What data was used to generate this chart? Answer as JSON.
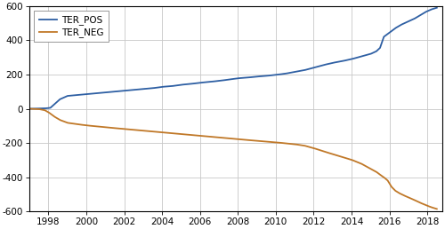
{
  "xlim": [
    1997.0,
    2018.8
  ],
  "ylim": [
    -600,
    600
  ],
  "yticks": [
    -600,
    -400,
    -200,
    0,
    200,
    400,
    600
  ],
  "xticks": [
    1998,
    2000,
    2002,
    2004,
    2006,
    2008,
    2010,
    2012,
    2014,
    2016,
    2018
  ],
  "pos_color": "#2e5fa3",
  "neg_color": "#c07828",
  "legend_pos_label": "TER_POS",
  "legend_neg_label": "TER_NEG",
  "background_color": "#ffffff",
  "grid_color": "#c8c8c8",
  "pos_keypoints": [
    [
      1997.0,
      0
    ],
    [
      1997.8,
      2
    ],
    [
      1998.1,
      5
    ],
    [
      1998.6,
      55
    ],
    [
      1999.0,
      75
    ],
    [
      1999.5,
      80
    ],
    [
      2000.0,
      85
    ],
    [
      2001.0,
      95
    ],
    [
      2002.0,
      105
    ],
    [
      2003.0,
      115
    ],
    [
      2003.5,
      120
    ],
    [
      2004.0,
      128
    ],
    [
      2004.5,
      132
    ],
    [
      2005.0,
      140
    ],
    [
      2005.5,
      145
    ],
    [
      2006.0,
      152
    ],
    [
      2006.5,
      157
    ],
    [
      2007.0,
      163
    ],
    [
      2007.5,
      170
    ],
    [
      2008.0,
      178
    ],
    [
      2008.5,
      182
    ],
    [
      2009.0,
      188
    ],
    [
      2009.5,
      192
    ],
    [
      2010.0,
      198
    ],
    [
      2010.5,
      205
    ],
    [
      2011.0,
      215
    ],
    [
      2011.5,
      225
    ],
    [
      2012.0,
      240
    ],
    [
      2012.5,
      255
    ],
    [
      2013.0,
      268
    ],
    [
      2013.5,
      278
    ],
    [
      2014.0,
      290
    ],
    [
      2014.5,
      305
    ],
    [
      2015.0,
      320
    ],
    [
      2015.3,
      335
    ],
    [
      2015.5,
      355
    ],
    [
      2015.7,
      420
    ],
    [
      2016.0,
      445
    ],
    [
      2016.3,
      470
    ],
    [
      2016.6,
      490
    ],
    [
      2017.0,
      510
    ],
    [
      2017.3,
      525
    ],
    [
      2017.6,
      545
    ],
    [
      2017.9,
      565
    ],
    [
      2018.2,
      580
    ],
    [
      2018.5,
      590
    ]
  ],
  "neg_keypoints": [
    [
      1997.0,
      0
    ],
    [
      1997.5,
      -2
    ],
    [
      1997.8,
      -8
    ],
    [
      1998.0,
      -20
    ],
    [
      1998.3,
      -45
    ],
    [
      1998.6,
      -65
    ],
    [
      1999.0,
      -82
    ],
    [
      1999.5,
      -90
    ],
    [
      2000.0,
      -97
    ],
    [
      2001.0,
      -108
    ],
    [
      2002.0,
      -118
    ],
    [
      2003.0,
      -128
    ],
    [
      2004.0,
      -138
    ],
    [
      2005.0,
      -148
    ],
    [
      2006.0,
      -158
    ],
    [
      2007.0,
      -168
    ],
    [
      2008.0,
      -178
    ],
    [
      2009.0,
      -187
    ],
    [
      2010.0,
      -196
    ],
    [
      2011.0,
      -207
    ],
    [
      2011.5,
      -215
    ],
    [
      2012.0,
      -230
    ],
    [
      2012.5,
      -248
    ],
    [
      2013.0,
      -265
    ],
    [
      2013.5,
      -282
    ],
    [
      2014.0,
      -298
    ],
    [
      2014.5,
      -320
    ],
    [
      2015.0,
      -350
    ],
    [
      2015.3,
      -368
    ],
    [
      2015.5,
      -385
    ],
    [
      2015.7,
      -400
    ],
    [
      2015.9,
      -418
    ],
    [
      2016.1,
      -455
    ],
    [
      2016.3,
      -478
    ],
    [
      2016.5,
      -492
    ],
    [
      2016.7,
      -503
    ],
    [
      2017.0,
      -518
    ],
    [
      2017.3,
      -532
    ],
    [
      2017.6,
      -548
    ],
    [
      2017.9,
      -562
    ],
    [
      2018.2,
      -575
    ],
    [
      2018.5,
      -585
    ]
  ]
}
